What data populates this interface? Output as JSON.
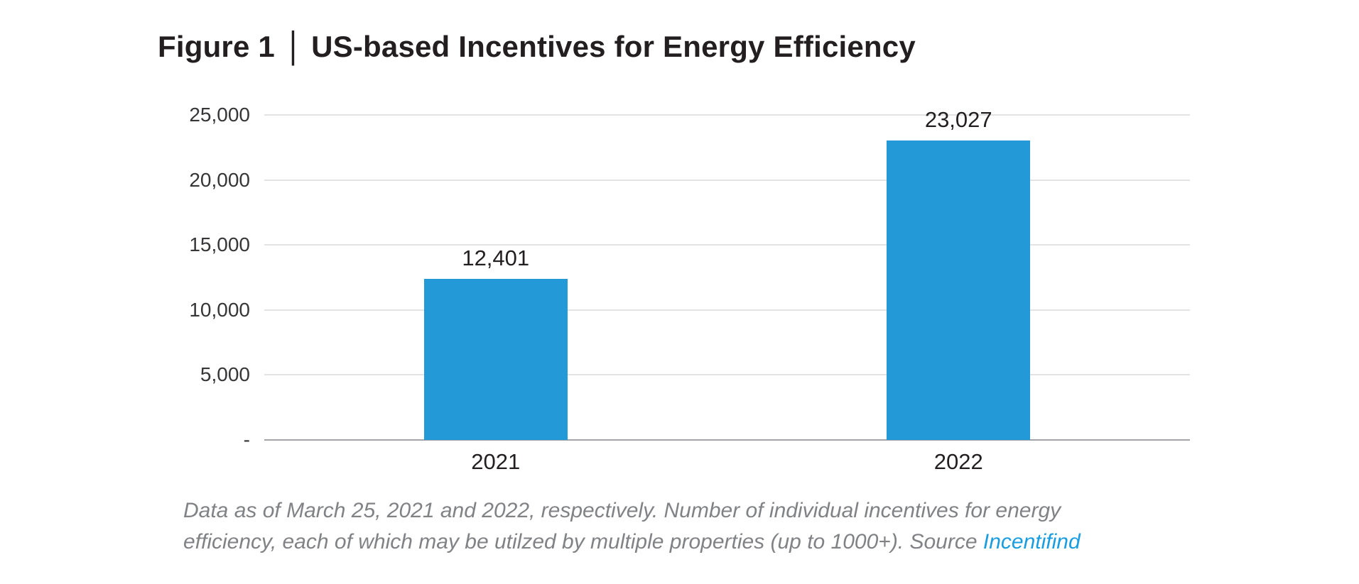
{
  "title": {
    "prefix": "Figure 1",
    "separator": "|",
    "main": "US-based Incentives for Energy Efficiency"
  },
  "chart_data": {
    "type": "bar",
    "title": "Figure 1 | US-based Incentives for Energy Efficiency",
    "categories": [
      "2021",
      "2022"
    ],
    "values": [
      12401,
      23027
    ],
    "value_labels": [
      "12,401",
      "23,027"
    ],
    "y_ticks": [
      "25,000",
      "20,000",
      "15,000",
      "10,000",
      "5,000",
      "-"
    ],
    "y_tick_values": [
      25000,
      20000,
      15000,
      10000,
      5000,
      0
    ],
    "ylim": [
      0,
      25000
    ],
    "xlabel": "",
    "ylabel": "",
    "grid": true,
    "legend": "none",
    "bar_color": "#2499d8"
  },
  "caption": {
    "line1": "Data as of March 25, 2021 and 2022, respectively. Number of individual incentives for energy",
    "line2": "efficiency, each of which may be utilzed by multiple properties (up to 1000+). Source ",
    "link_label": "Incentifind"
  },
  "colors": {
    "bar": "#2499d8",
    "grid": "#e3e3e4",
    "axis": "#a2a4a7",
    "text_dark": "#231f20",
    "tick_text": "#363639",
    "caption": "#808285",
    "link": "#1a9de0",
    "background": "#ffffff"
  }
}
